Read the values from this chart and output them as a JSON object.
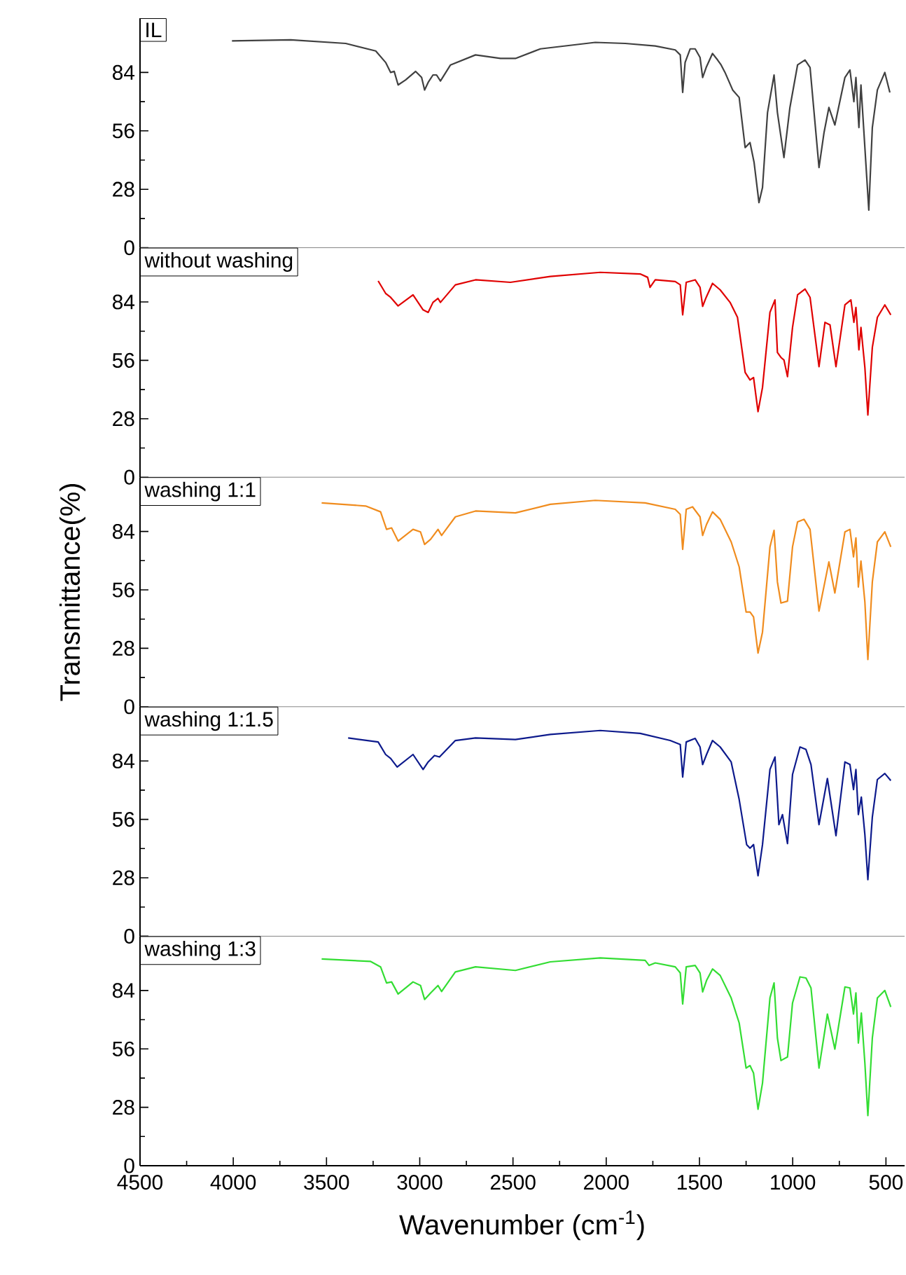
{
  "chart_data": [
    {
      "type": "line",
      "xlim": [
        4500,
        400
      ],
      "ylim": [
        0,
        110
      ],
      "yticks": [
        0,
        28,
        56,
        84
      ],
      "tick_labels": "y",
      "annotations": [
        "IL"
      ],
      "series": [
        {
          "color": "#404040",
          "x": [
            4007,
            3692,
            3397,
            3236,
            3183,
            3156,
            3137,
            3116,
            3076,
            3022,
            2990,
            2974,
            2955,
            2929,
            2910,
            2889,
            2835,
            2701,
            2567,
            2487,
            2353,
            2059,
            1898,
            1737,
            1630,
            1603,
            1590,
            1577,
            1550,
            1523,
            1497,
            1483,
            1464,
            1430,
            1403,
            1384,
            1363,
            1322,
            1287,
            1255,
            1229,
            1207,
            1181,
            1162,
            1135,
            1100,
            1082,
            1047,
            1015,
            974,
            934,
            907,
            859,
            832,
            806,
            774,
            720,
            693,
            672,
            661,
            645,
            634,
            613,
            592,
            573,
            546,
            506,
            479
          ],
          "values": [
            99.1,
            99.6,
            97.9,
            94.3,
            88.8,
            84,
            84.5,
            78,
            80.4,
            84.5,
            81.6,
            75.6,
            79.2,
            82.8,
            82.8,
            79.9,
            87.6,
            92.4,
            90.7,
            90.7,
            95.3,
            98.4,
            97.9,
            96.7,
            94.8,
            92.4,
            74.4,
            88.8,
            95.3,
            95.3,
            91.2,
            81.6,
            86.4,
            93.1,
            90,
            87.6,
            84,
            75.6,
            72,
            48,
            50.4,
            40.8,
            21.6,
            28.8,
            64.8,
            82.8,
            64.8,
            43.2,
            67.2,
            87.6,
            90,
            86.4,
            38.4,
            55.2,
            67.2,
            58.8,
            81.6,
            85.2,
            70,
            81.6,
            57.6,
            78,
            48,
            18,
            57.6,
            75.6,
            84,
            74.4
          ]
        }
      ]
    },
    {
      "type": "line",
      "xlim": [
        4500,
        400
      ],
      "ylim": [
        0,
        110
      ],
      "yticks": [
        0,
        28,
        56,
        84
      ],
      "tick_labels": "y",
      "annotations": [
        "without washing"
      ],
      "series": [
        {
          "color": "#e00000",
          "x": [
            3223,
            3183,
            3156,
            3116,
            3036,
            2982,
            2955,
            2929,
            2902,
            2889,
            2809,
            2701,
            2514,
            2300,
            2032,
            1818,
            1778,
            1765,
            1737,
            1630,
            1603,
            1590,
            1571,
            1523,
            1497,
            1483,
            1464,
            1430,
            1389,
            1336,
            1296,
            1255,
            1229,
            1210,
            1186,
            1162,
            1122,
            1095,
            1082,
            1063,
            1047,
            1028,
            1001,
            974,
            934,
            907,
            859,
            827,
            800,
            768,
            720,
            688,
            672,
            661,
            645,
            634,
            613,
            597,
            573,
            546,
            506,
            474
          ],
          "values": [
            94.1,
            88.1,
            86.2,
            82.1,
            87.4,
            80.2,
            79,
            83.8,
            85.7,
            83.8,
            92.2,
            94.6,
            93.4,
            96.2,
            98.2,
            97.4,
            95.8,
            91,
            94.6,
            93.8,
            92.2,
            77.8,
            93.4,
            94.6,
            91,
            81.9,
            86.2,
            92.9,
            89.8,
            83.8,
            76.6,
            50.2,
            46.6,
            47.8,
            31.4,
            43,
            79,
            85,
            59.8,
            57.4,
            56.2,
            48.2,
            71.8,
            87.4,
            90.2,
            86.2,
            53,
            74.2,
            73,
            53,
            82.6,
            85,
            74.2,
            81.4,
            61,
            71.8,
            52.6,
            29.8,
            62.2,
            76.6,
            82.6,
            77.8
          ]
        }
      ]
    },
    {
      "type": "line",
      "xlim": [
        4500,
        400
      ],
      "ylim": [
        0,
        110
      ],
      "yticks": [
        0,
        28,
        56,
        84
      ],
      "tick_labels": "y",
      "ylabel": "Transmittance(%)",
      "annotations": [
        "washing 1:1"
      ],
      "series": [
        {
          "color": "#f08c1e",
          "x": [
            3526,
            3290,
            3210,
            3178,
            3151,
            3116,
            3036,
            2996,
            2974,
            2942,
            2902,
            2883,
            2809,
            2701,
            2487,
            2300,
            2059,
            1791,
            1630,
            1603,
            1590,
            1571,
            1537,
            1497,
            1483,
            1462,
            1430,
            1389,
            1330,
            1287,
            1250,
            1229,
            1210,
            1186,
            1162,
            1122,
            1100,
            1082,
            1063,
            1028,
            1001,
            974,
            939,
            907,
            859,
            806,
            774,
            720,
            693,
            674,
            661,
            648,
            634,
            613,
            597,
            573,
            546,
            506,
            474
          ],
          "values": [
            97.7,
            96.2,
            93.4,
            85,
            85.7,
            79.4,
            85,
            83.8,
            77.8,
            80.2,
            85,
            82.1,
            91,
            93.8,
            92.9,
            97,
            98.9,
            97.7,
            94.6,
            92.2,
            75.4,
            94.6,
            95.8,
            91,
            82.1,
            87.4,
            93.4,
            89.8,
            79,
            67,
            45.4,
            45.4,
            43,
            25.7,
            35.8,
            76.6,
            84.5,
            59.8,
            49.7,
            50.6,
            76.6,
            88.6,
            89.8,
            85,
            45.8,
            69.4,
            54.5,
            83.8,
            85,
            71.8,
            80.9,
            57.4,
            69.8,
            50.2,
            22.6,
            59.8,
            79,
            83.8,
            76.6
          ]
        }
      ]
    },
    {
      "type": "line",
      "xlim": [
        4500,
        400
      ],
      "ylim": [
        0,
        110
      ],
      "yticks": [
        0,
        28,
        56,
        84
      ],
      "tick_labels": "y",
      "annotations": [
        "washing 1:1.5"
      ],
      "series": [
        {
          "color": "#0d1a8c",
          "x": [
            3384,
            3223,
            3183,
            3156,
            3121,
            3036,
            2982,
            2955,
            2921,
            2894,
            2809,
            2701,
            2487,
            2300,
            2032,
            1818,
            1657,
            1603,
            1590,
            1571,
            1523,
            1497,
            1483,
            1462,
            1430,
            1389,
            1330,
            1287,
            1247,
            1229,
            1210,
            1186,
            1162,
            1122,
            1095,
            1074,
            1055,
            1028,
            1001,
            961,
            929,
            902,
            859,
            814,
            768,
            720,
            693,
            674,
            661,
            648,
            632,
            613,
            597,
            573,
            546,
            506,
            474
          ],
          "values": [
            95,
            93.1,
            87.1,
            85.2,
            81.1,
            87.1,
            79.9,
            83.5,
            86.6,
            85.9,
            93.8,
            95,
            94.3,
            96.7,
            98.6,
            97.2,
            93.8,
            91.9,
            76.3,
            93.1,
            94.8,
            90.7,
            82.3,
            87.1,
            93.8,
            90.7,
            83.5,
            65.5,
            43.9,
            42.2,
            43.9,
            29,
            43.9,
            79.9,
            85.9,
            53.5,
            58.3,
            44.4,
            77.5,
            90.7,
            89.5,
            82.3,
            53.5,
            75.6,
            48.2,
            83.5,
            82.3,
            70.3,
            79.9,
            58.3,
            66.7,
            48.7,
            27.1,
            57.1,
            75.1,
            78,
            74.6
          ]
        }
      ]
    },
    {
      "type": "line",
      "xlim": [
        4500,
        400
      ],
      "ylim": [
        0,
        110
      ],
      "yticks": [
        0,
        28,
        56,
        84
      ],
      "xticks": [
        4500,
        4000,
        3500,
        3000,
        2500,
        2000,
        1500,
        1000,
        500
      ],
      "xlabel": "Wavenumber (cm$^{-1}$)",
      "annotations": [
        "washing 1:3"
      ],
      "series": [
        {
          "color": "#33dd33",
          "x": [
            3526,
            3263,
            3210,
            3178,
            3151,
            3116,
            3036,
            2996,
            2974,
            2942,
            2902,
            2883,
            2809,
            2701,
            2487,
            2300,
            2032,
            1791,
            1770,
            1737,
            1630,
            1603,
            1590,
            1571,
            1523,
            1497,
            1483,
            1462,
            1430,
            1389,
            1330,
            1287,
            1250,
            1229,
            1210,
            1186,
            1162,
            1122,
            1100,
            1082,
            1063,
            1028,
            1001,
            961,
            929,
            902,
            859,
            814,
            774,
            720,
            693,
            674,
            661,
            648,
            632,
            613,
            597,
            573,
            546,
            506,
            474
          ],
          "values": [
            99.1,
            97.9,
            95.3,
            87.6,
            88.1,
            82.3,
            88.1,
            86.4,
            79.7,
            82.8,
            86.4,
            83.5,
            92.9,
            95.3,
            93.6,
            97.7,
            99.6,
            98.4,
            96,
            97.2,
            95.3,
            92.4,
            77.5,
            95.3,
            96,
            92.4,
            83.3,
            88.8,
            94.3,
            91.2,
            80.4,
            68.4,
            46.8,
            48,
            44.4,
            27.1,
            39.6,
            80.4,
            87.6,
            61.2,
            50.4,
            52.1,
            78,
            90.5,
            90,
            85.2,
            46.8,
            72.7,
            55.9,
            85.7,
            85.2,
            72.7,
            82.8,
            58.8,
            73.2,
            49.2,
            24,
            61.2,
            80.4,
            84,
            76.1
          ]
        }
      ]
    }
  ]
}
